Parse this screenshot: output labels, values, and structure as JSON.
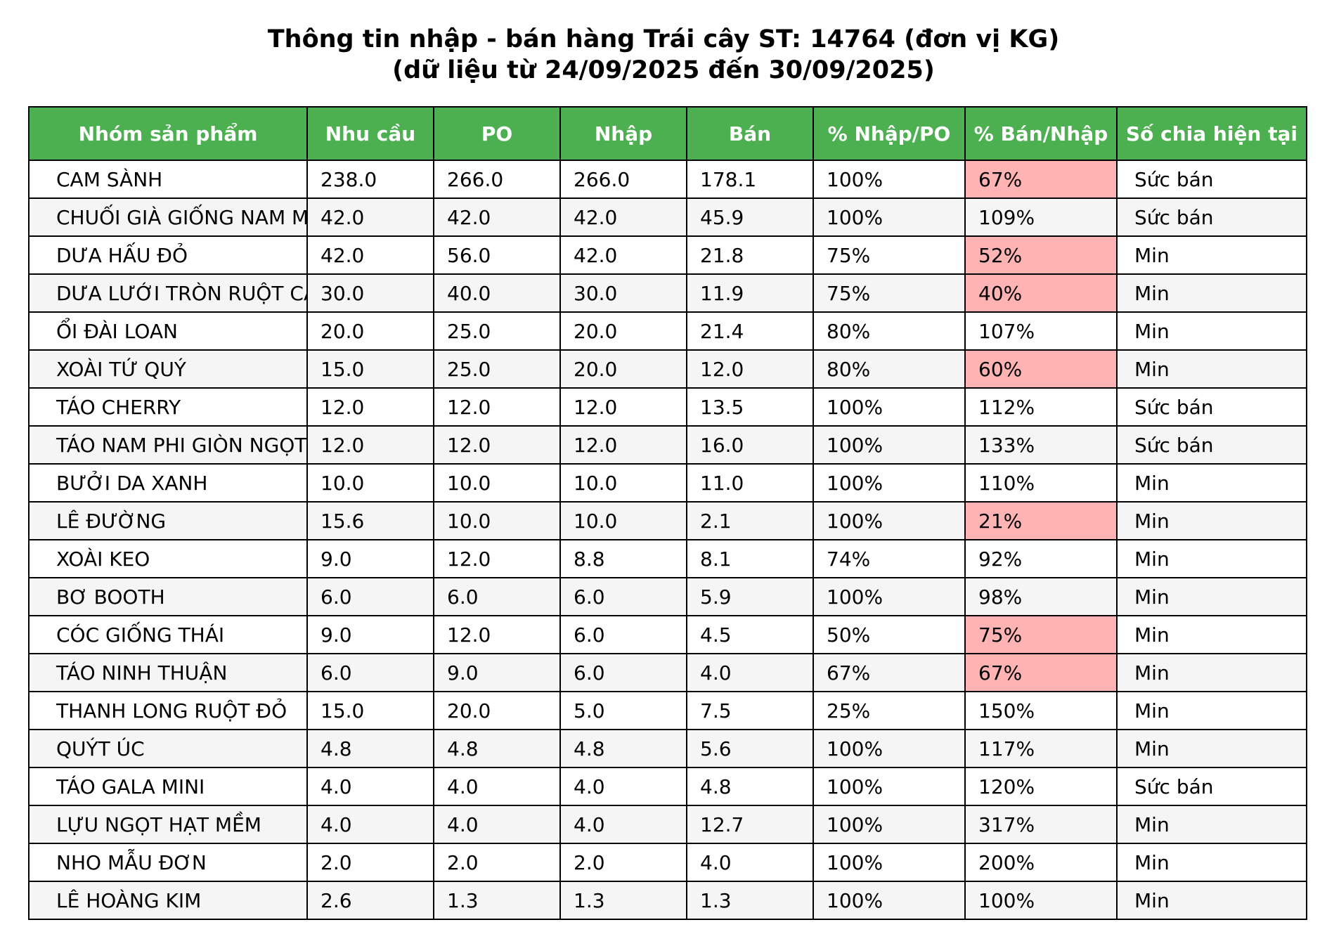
{
  "title_line1": "Thông tin nhập - bán hàng Trái cây ST: 14764 (đơn vị KG)",
  "title_line2": "(dữ liệu từ 24/09/2025 đến 30/09/2025)",
  "colors": {
    "header_bg": "#4caf50",
    "header_text": "#ffffff",
    "highlight": "#ffb3b3",
    "alt_row": "#f5f5f5"
  },
  "chart_data": {
    "type": "table",
    "columns": [
      "Nhóm sản phẩm",
      "Nhu cầu",
      "PO",
      "Nhập",
      "Bán",
      "% Nhập/PO",
      "% Bán/Nhập",
      "Số chia hiện tại"
    ],
    "rows": [
      {
        "cells": [
          "CAM SÀNH",
          "238.0",
          "266.0",
          "266.0",
          "178.1",
          "100%",
          "67%",
          "Sức bán"
        ],
        "highlight": true
      },
      {
        "cells": [
          "CHUỐI GIÀ GIỐNG NAM M",
          "42.0",
          "42.0",
          "42.0",
          "45.9",
          "100%",
          "109%",
          "Sức bán"
        ],
        "highlight": false
      },
      {
        "cells": [
          "DƯA HẤU ĐỎ",
          "42.0",
          "56.0",
          "42.0",
          "21.8",
          "75%",
          "52%",
          "Min"
        ],
        "highlight": true
      },
      {
        "cells": [
          "DƯA LƯỚI TRÒN RUỘT CA",
          "30.0",
          "40.0",
          "30.0",
          "11.9",
          "75%",
          "40%",
          "Min"
        ],
        "highlight": true
      },
      {
        "cells": [
          "ỔI ĐÀI LOAN",
          "20.0",
          "25.0",
          "20.0",
          "21.4",
          "80%",
          "107%",
          "Min"
        ],
        "highlight": false
      },
      {
        "cells": [
          "XOÀI TỨ QUÝ",
          "15.0",
          "25.0",
          "20.0",
          "12.0",
          "80%",
          "60%",
          "Min"
        ],
        "highlight": true
      },
      {
        "cells": [
          "TÁO CHERRY",
          "12.0",
          "12.0",
          "12.0",
          "13.5",
          "100%",
          "112%",
          "Sức bán"
        ],
        "highlight": false
      },
      {
        "cells": [
          "TÁO NAM PHI GIÒN NGỌT",
          "12.0",
          "12.0",
          "12.0",
          "16.0",
          "100%",
          "133%",
          "Sức bán"
        ],
        "highlight": false
      },
      {
        "cells": [
          "BƯỞI DA XANH",
          "10.0",
          "10.0",
          "10.0",
          "11.0",
          "100%",
          "110%",
          "Min"
        ],
        "highlight": false
      },
      {
        "cells": [
          "LÊ ĐƯỜNG",
          "15.6",
          "10.0",
          "10.0",
          "2.1",
          "100%",
          "21%",
          "Min"
        ],
        "highlight": true
      },
      {
        "cells": [
          "XOÀI KEO",
          "9.0",
          "12.0",
          "8.8",
          "8.1",
          "74%",
          "92%",
          "Min"
        ],
        "highlight": false
      },
      {
        "cells": [
          "BƠ BOOTH",
          "6.0",
          "6.0",
          "6.0",
          "5.9",
          "100%",
          "98%",
          "Min"
        ],
        "highlight": false
      },
      {
        "cells": [
          "CÓC GIỐNG THÁI",
          "9.0",
          "12.0",
          "6.0",
          "4.5",
          "50%",
          "75%",
          "Min"
        ],
        "highlight": true
      },
      {
        "cells": [
          "TÁO NINH THUẬN",
          "6.0",
          "9.0",
          "6.0",
          "4.0",
          "67%",
          "67%",
          "Min"
        ],
        "highlight": true
      },
      {
        "cells": [
          "THANH LONG RUỘT ĐỎ",
          "15.0",
          "20.0",
          "5.0",
          "7.5",
          "25%",
          "150%",
          "Min"
        ],
        "highlight": false
      },
      {
        "cells": [
          "QUÝT ÚC",
          "4.8",
          "4.8",
          "4.8",
          "5.6",
          "100%",
          "117%",
          "Min"
        ],
        "highlight": false
      },
      {
        "cells": [
          "TÁO GALA MINI",
          "4.0",
          "4.0",
          "4.0",
          "4.8",
          "100%",
          "120%",
          "Sức bán"
        ],
        "highlight": false
      },
      {
        "cells": [
          "LỰU NGỌT HẠT MỀM",
          "4.0",
          "4.0",
          "4.0",
          "12.7",
          "100%",
          "317%",
          "Min"
        ],
        "highlight": false
      },
      {
        "cells": [
          "NHO MẪU ĐƠN",
          "2.0",
          "2.0",
          "2.0",
          "4.0",
          "100%",
          "200%",
          "Min"
        ],
        "highlight": false
      },
      {
        "cells": [
          "LÊ HOÀNG KIM",
          "2.6",
          "1.3",
          "1.3",
          "1.3",
          "100%",
          "100%",
          "Min"
        ],
        "highlight": false
      }
    ]
  }
}
